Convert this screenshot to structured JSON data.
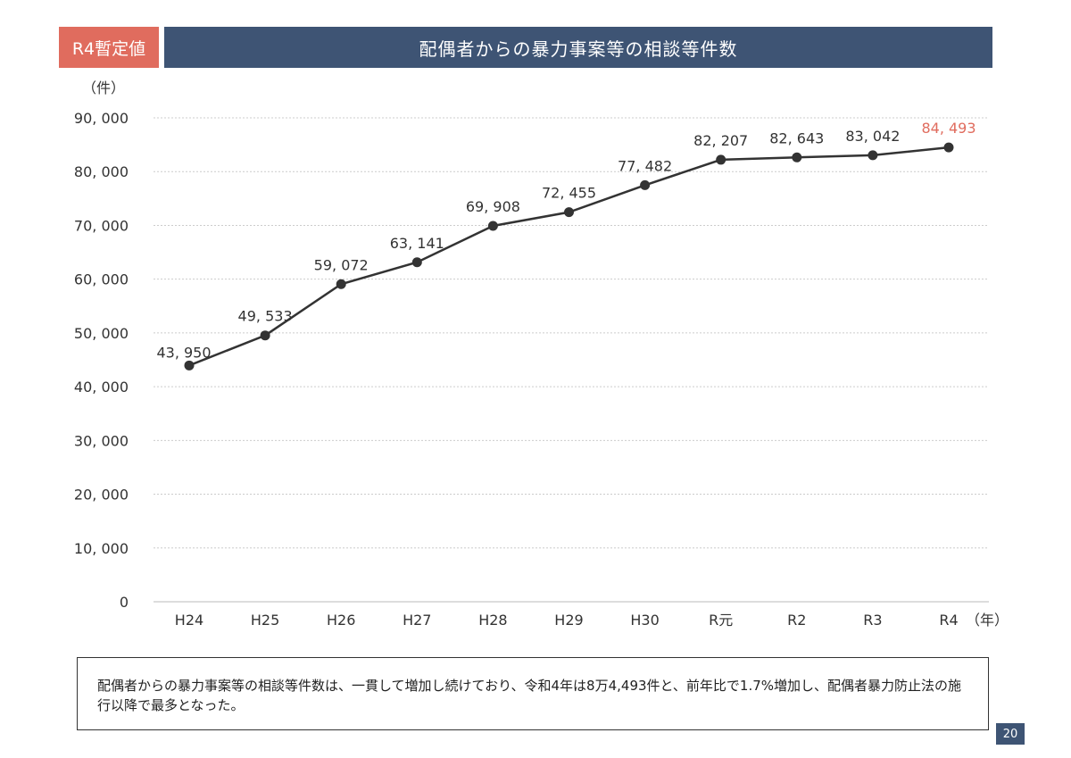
{
  "header": {
    "badge_label": "R4暫定値",
    "title": "配偶者からの暴力事案等の相談等件数"
  },
  "chart_data": {
    "type": "line",
    "title": "配偶者からの暴力事案等の相談等件数",
    "y_unit_label": "（件）",
    "x_unit_label": "（年）",
    "categories": [
      "H24",
      "H25",
      "H26",
      "H27",
      "H28",
      "H29",
      "H30",
      "R元",
      "R2",
      "R3",
      "R4"
    ],
    "values": [
      43950,
      49533,
      59072,
      63141,
      69908,
      72455,
      77482,
      82207,
      82643,
      83042,
      84493
    ],
    "value_labels": [
      "43, 950",
      "49, 533",
      "59, 072",
      "63, 141",
      "69, 908",
      "72, 455",
      "77, 482",
      "82, 207",
      "82, 643",
      "83, 042",
      "84, 493"
    ],
    "highlight_index": 10,
    "ylim": [
      0,
      90000
    ],
    "y_ticks": [
      0,
      10000,
      20000,
      30000,
      40000,
      50000,
      60000,
      70000,
      80000,
      90000
    ],
    "y_tick_labels": [
      "0",
      "10, 000",
      "20, 000",
      "30, 000",
      "40, 000",
      "50, 000",
      "60, 000",
      "70, 000",
      "80, 000",
      "90, 000"
    ],
    "grid": true,
    "colors": {
      "line": "#333333",
      "marker": "#333333",
      "label": "#333333",
      "highlight_label": "#e06c5e",
      "grid": "#cccccc"
    }
  },
  "summary": {
    "text": "配偶者からの暴力事案等の相談等件数は、一貫して増加し続けており、令和4年は8万4,493件と、前年比で1.7%増加し、配偶者暴力防止法の施行以降で最多となった。"
  },
  "footer": {
    "page_number": "20"
  }
}
